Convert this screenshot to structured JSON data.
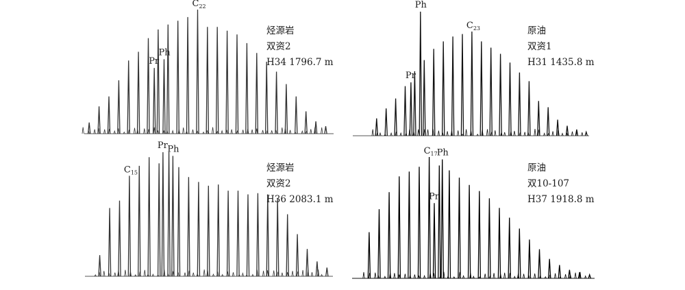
{
  "chart_data": [
    {
      "type": "line",
      "info": [
        "烃源岩",
        "双资2",
        "H34 1796.7 m"
      ],
      "baseline_color": "#555555",
      "series_color": "#333333",
      "main": [
        {
          "carbon": 11,
          "value": 0.09
        },
        {
          "carbon": 12,
          "value": 0.22
        },
        {
          "carbon": 13,
          "value": 0.3
        },
        {
          "carbon": 14,
          "value": 0.43
        },
        {
          "carbon": 15,
          "value": 0.59
        },
        {
          "carbon": 16,
          "value": 0.66
        },
        {
          "carbon": 17,
          "value": 0.77
        },
        {
          "carbon": 18,
          "value": 0.84
        },
        {
          "carbon": 19,
          "value": 0.88
        },
        {
          "carbon": 20,
          "value": 0.91
        },
        {
          "carbon": 21,
          "value": 0.94
        },
        {
          "carbon": 22,
          "value": 1.0
        },
        {
          "carbon": 23,
          "value": 0.86
        },
        {
          "carbon": 24,
          "value": 0.86
        },
        {
          "carbon": 25,
          "value": 0.83
        },
        {
          "carbon": 26,
          "value": 0.8
        },
        {
          "carbon": 27,
          "value": 0.73
        },
        {
          "carbon": 28,
          "value": 0.65
        },
        {
          "carbon": 29,
          "value": 0.58
        },
        {
          "carbon": 30,
          "value": 0.5
        },
        {
          "carbon": 31,
          "value": 0.4
        },
        {
          "carbon": 32,
          "value": 0.3
        },
        {
          "carbon": 33,
          "value": 0.18
        },
        {
          "carbon": 34,
          "value": 0.1
        },
        {
          "carbon": 35,
          "value": 0.06
        }
      ],
      "isoprenoids": [
        {
          "name": "Pr",
          "carbon": 17.6,
          "value": 0.53
        },
        {
          "name": "Ph",
          "carbon": 18.6,
          "value": 0.6
        }
      ],
      "annotations": [
        {
          "text": "C",
          "sub": "22",
          "carbon": 22
        },
        {
          "text": "Pr",
          "sub": "",
          "carbon": 17.6
        },
        {
          "text": "Ph",
          "sub": "",
          "carbon": 18.6
        }
      ]
    },
    {
      "type": "line",
      "info": [
        "原油",
        "双资1",
        "H31 1435.8 m"
      ],
      "baseline_color": "#555555",
      "series_color": "#111111",
      "main": [
        {
          "carbon": 13,
          "value": 0.14
        },
        {
          "carbon": 14,
          "value": 0.22
        },
        {
          "carbon": 15,
          "value": 0.3
        },
        {
          "carbon": 16,
          "value": 0.4
        },
        {
          "carbon": 17,
          "value": 0.52
        },
        {
          "carbon": 18,
          "value": 0.61
        },
        {
          "carbon": 19,
          "value": 0.7
        },
        {
          "carbon": 20,
          "value": 0.76
        },
        {
          "carbon": 21,
          "value": 0.8
        },
        {
          "carbon": 22,
          "value": 0.82
        },
        {
          "carbon": 23,
          "value": 0.84
        },
        {
          "carbon": 24,
          "value": 0.76
        },
        {
          "carbon": 25,
          "value": 0.71
        },
        {
          "carbon": 26,
          "value": 0.66
        },
        {
          "carbon": 27,
          "value": 0.59
        },
        {
          "carbon": 28,
          "value": 0.51
        },
        {
          "carbon": 29,
          "value": 0.44
        },
        {
          "carbon": 30,
          "value": 0.28
        },
        {
          "carbon": 31,
          "value": 0.23
        },
        {
          "carbon": 32,
          "value": 0.13
        },
        {
          "carbon": 33,
          "value": 0.08
        },
        {
          "carbon": 34,
          "value": 0.05
        },
        {
          "carbon": 35,
          "value": 0.03
        }
      ],
      "isoprenoids": [
        {
          "name": "Pr",
          "carbon": 16.6,
          "value": 0.43
        },
        {
          "name": "Ph",
          "carbon": 17.6,
          "value": 1.0
        }
      ],
      "annotations": [
        {
          "text": "C",
          "sub": "23",
          "carbon": 23
        },
        {
          "text": "Pr",
          "sub": "",
          "carbon": 16.6
        },
        {
          "text": "Ph",
          "sub": "",
          "carbon": 17.6
        }
      ]
    },
    {
      "type": "line",
      "info": [
        "烃源岩",
        "双资2",
        "H36 2083.1 m"
      ],
      "baseline_color": "#555555",
      "series_color": "#333333",
      "main": [
        {
          "carbon": 12,
          "value": 0.17
        },
        {
          "carbon": 13,
          "value": 0.55
        },
        {
          "carbon": 14,
          "value": 0.61
        },
        {
          "carbon": 15,
          "value": 0.81
        },
        {
          "carbon": 16,
          "value": 0.89
        },
        {
          "carbon": 17,
          "value": 0.96
        },
        {
          "carbon": 18,
          "value": 0.91
        },
        {
          "carbon": 19,
          "value": 1.0
        },
        {
          "carbon": 20,
          "value": 0.88
        },
        {
          "carbon": 21,
          "value": 0.8
        },
        {
          "carbon": 22,
          "value": 0.76
        },
        {
          "carbon": 23,
          "value": 0.73
        },
        {
          "carbon": 24,
          "value": 0.74
        },
        {
          "carbon": 25,
          "value": 0.69
        },
        {
          "carbon": 26,
          "value": 0.69
        },
        {
          "carbon": 27,
          "value": 0.66
        },
        {
          "carbon": 28,
          "value": 0.67
        },
        {
          "carbon": 29,
          "value": 0.66
        },
        {
          "carbon": 30,
          "value": 0.63
        },
        {
          "carbon": 31,
          "value": 0.5
        },
        {
          "carbon": 32,
          "value": 0.34
        },
        {
          "carbon": 33,
          "value": 0.22
        },
        {
          "carbon": 34,
          "value": 0.12
        },
        {
          "carbon": 35,
          "value": 0.07
        }
      ],
      "isoprenoids": [
        {
          "name": "Pr",
          "carbon": 18.4,
          "value": 1.0
        },
        {
          "name": "Ph",
          "carbon": 19.4,
          "value": 0.97
        }
      ],
      "annotations": [
        {
          "text": "C",
          "sub": "15",
          "carbon": 15
        },
        {
          "text": "Pr",
          "sub": "",
          "carbon": 18.4
        },
        {
          "text": "Ph",
          "sub": "",
          "carbon": 19.4
        }
      ]
    },
    {
      "type": "line",
      "info": [
        "原油",
        "双10-107",
        "H37 1918.8 m"
      ],
      "baseline_color": "#111111",
      "series_color": "#000000",
      "main": [
        {
          "carbon": 11,
          "value": 0.38
        },
        {
          "carbon": 12,
          "value": 0.57
        },
        {
          "carbon": 13,
          "value": 0.71
        },
        {
          "carbon": 14,
          "value": 0.84
        },
        {
          "carbon": 15,
          "value": 0.88
        },
        {
          "carbon": 16,
          "value": 0.92
        },
        {
          "carbon": 17,
          "value": 1.0
        },
        {
          "carbon": 18,
          "value": 0.93
        },
        {
          "carbon": 19,
          "value": 0.89
        },
        {
          "carbon": 20,
          "value": 0.83
        },
        {
          "carbon": 21,
          "value": 0.77
        },
        {
          "carbon": 22,
          "value": 0.72
        },
        {
          "carbon": 23,
          "value": 0.66
        },
        {
          "carbon": 24,
          "value": 0.58
        },
        {
          "carbon": 25,
          "value": 0.5
        },
        {
          "carbon": 26,
          "value": 0.41
        },
        {
          "carbon": 27,
          "value": 0.32
        },
        {
          "carbon": 28,
          "value": 0.24
        },
        {
          "carbon": 29,
          "value": 0.16
        },
        {
          "carbon": 30,
          "value": 0.11
        },
        {
          "carbon": 31,
          "value": 0.07
        },
        {
          "carbon": 32,
          "value": 0.05
        },
        {
          "carbon": 33,
          "value": 0.03
        }
      ],
      "isoprenoids": [
        {
          "name": "Pr",
          "carbon": 17.5,
          "value": 0.62
        },
        {
          "name": "Ph",
          "carbon": 18.3,
          "value": 0.98
        }
      ],
      "annotations": [
        {
          "text": "C",
          "sub": "17",
          "carbon": 17
        },
        {
          "text": "Ph",
          "sub": "",
          "carbon": 18.3
        },
        {
          "text": "Pr",
          "sub": "",
          "carbon": 17.5
        }
      ]
    }
  ]
}
